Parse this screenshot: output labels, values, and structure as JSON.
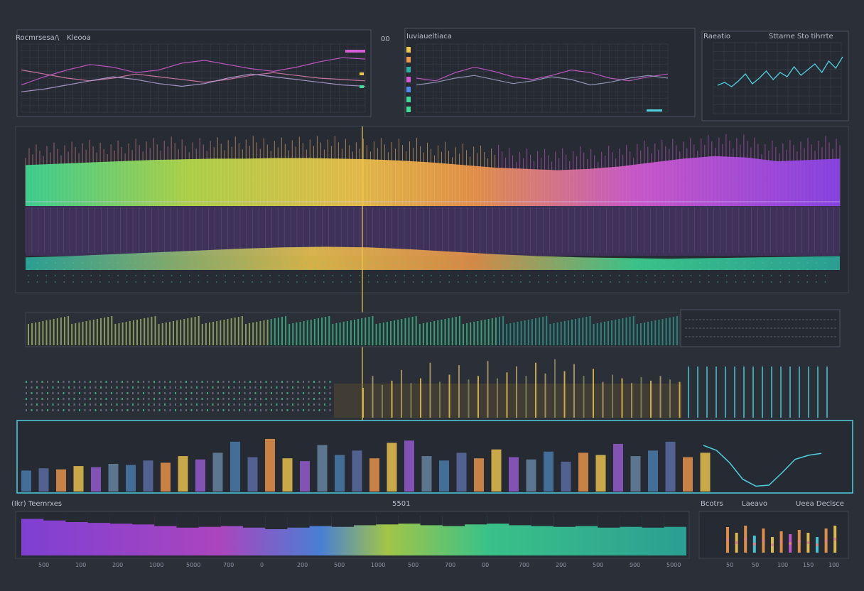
{
  "colors": {
    "background": "#2b2f38",
    "panel": "#252932",
    "frame": "#5c6573",
    "accent_cyan": "#4fd1e0",
    "yellow": "#f2c94c",
    "orange": "#f2994a",
    "magenta": "#d65cd6",
    "purple": "#8e44ef",
    "green": "#3ddc97",
    "teal": "#2bb3a3"
  },
  "top_panels": [
    {
      "title_left": "Rocmrsesa/\\",
      "title_right": "Kleooa",
      "corner_label": "00"
    },
    {
      "title_left": "Iuviaueltiaca",
      "title_right": "",
      "corner_label": ""
    },
    {
      "title_left": "Raeatio",
      "title_right": "Sttarne   Sto tihrrte",
      "corner_label": ""
    }
  ],
  "bottom_labels": {
    "left": "(Ikr) Teemrxes",
    "center": "5501",
    "right_a": "Bcotrs",
    "right_b": "Laeavo",
    "right_c": "Ueea Declsce"
  },
  "chart_data": [
    {
      "type": "line",
      "name": "top-left-multi-line",
      "series": [
        {
          "name": "",
          "values": [
            0.4,
            0.52,
            0.62,
            0.7,
            0.66,
            0.58,
            0.62,
            0.72,
            0.76,
            0.7,
            0.64,
            0.6,
            0.66,
            0.74,
            0.8,
            0.78
          ]
        },
        {
          "name": "",
          "values": [
            0.62,
            0.56,
            0.5,
            0.46,
            0.5,
            0.56,
            0.52,
            0.48,
            0.44,
            0.48,
            0.54,
            0.58,
            0.54,
            0.5,
            0.48,
            0.46
          ]
        },
        {
          "name": "",
          "values": [
            0.3,
            0.34,
            0.4,
            0.46,
            0.52,
            0.48,
            0.42,
            0.38,
            0.42,
            0.5,
            0.56,
            0.52,
            0.48,
            0.44,
            0.4,
            0.38
          ]
        }
      ]
    },
    {
      "type": "line",
      "name": "top-middle-multi-line",
      "series": [
        {
          "name": "",
          "values": [
            0.5,
            0.46,
            0.58,
            0.66,
            0.6,
            0.52,
            0.48,
            0.54,
            0.62,
            0.58,
            0.5,
            0.46,
            0.52,
            0.56
          ]
        },
        {
          "name": "",
          "values": [
            0.4,
            0.44,
            0.5,
            0.54,
            0.48,
            0.42,
            0.46,
            0.52,
            0.48,
            0.4,
            0.44,
            0.5,
            0.54,
            0.5
          ]
        }
      ]
    },
    {
      "type": "line",
      "name": "top-right-line",
      "values": [
        0.4,
        0.44,
        0.38,
        0.46,
        0.56,
        0.42,
        0.5,
        0.6,
        0.48,
        0.58,
        0.52,
        0.66,
        0.54,
        0.62,
        0.7,
        0.58,
        0.74,
        0.64,
        0.8
      ]
    },
    {
      "type": "area",
      "name": "main-spectrum-band",
      "values": [
        0.64,
        0.66,
        0.68,
        0.7,
        0.72,
        0.73,
        0.74,
        0.74,
        0.75,
        0.75,
        0.74,
        0.73,
        0.71,
        0.68,
        0.64,
        0.6,
        0.58,
        0.56,
        0.58,
        0.62,
        0.68,
        0.74,
        0.78,
        0.76,
        0.7,
        0.72,
        0.74
      ]
    },
    {
      "type": "area",
      "name": "secondary-spectrum-band",
      "values": [
        0.4,
        0.44,
        0.5,
        0.56,
        0.62,
        0.68,
        0.72,
        0.74,
        0.72,
        0.66,
        0.58,
        0.5,
        0.44,
        0.4,
        0.38,
        0.36,
        0.38,
        0.4,
        0.42,
        0.44
      ]
    },
    {
      "type": "bar",
      "name": "middle-bar-strip",
      "values": [
        0.5,
        0.7,
        0.55,
        0.62,
        0.8,
        0.58,
        0.66,
        0.92,
        0.6,
        0.72,
        0.88,
        0.64,
        0.7,
        0.95,
        0.66,
        0.76,
        0.86,
        0.7,
        0.92,
        0.74,
        0.98,
        0.78,
        0.9,
        0.7,
        0.82,
        0.6,
        0.72,
        0.66,
        0.58,
        0.68,
        0.62,
        0.7,
        0.64,
        0.6
      ]
    },
    {
      "type": "bar",
      "name": "lower-bar-panel",
      "values": [
        0.38,
        0.42,
        0.4,
        0.46,
        0.44,
        0.5,
        0.48,
        0.56,
        0.52,
        0.64,
        0.58,
        0.7,
        0.9,
        0.62,
        0.95,
        0.6,
        0.55,
        0.84,
        0.66,
        0.74,
        0.6,
        0.88,
        0.92,
        0.64,
        0.56,
        0.7,
        0.6,
        0.76,
        0.62,
        0.58,
        0.72,
        0.54,
        0.7,
        0.66,
        0.86,
        0.64,
        0.74,
        0.9,
        0.62,
        0.7
      ]
    },
    {
      "type": "line",
      "name": "lower-right-curve",
      "values": [
        0.9,
        0.8,
        0.55,
        0.22,
        0.08,
        0.1,
        0.35,
        0.62,
        0.7,
        0.74
      ]
    },
    {
      "type": "bar",
      "name": "bottom-spectrum",
      "values": [
        0.92,
        0.88,
        0.84,
        0.82,
        0.8,
        0.78,
        0.74,
        0.7,
        0.72,
        0.74,
        0.7,
        0.66,
        0.7,
        0.74,
        0.72,
        0.76,
        0.78,
        0.8,
        0.76,
        0.74,
        0.78,
        0.8,
        0.76,
        0.74,
        0.72,
        0.74,
        0.7,
        0.72,
        0.7,
        0.72
      ],
      "tick_labels": [
        "500",
        "100",
        "200",
        "1000",
        "5000",
        "700",
        "0",
        "200",
        "500",
        "1000",
        "500",
        "700",
        "00",
        "700",
        "200",
        "500",
        "900",
        "5000"
      ]
    },
    {
      "type": "bar",
      "name": "bottom-right-mini-bars",
      "values": [
        0.9,
        0.7,
        0.95,
        0.6,
        0.85,
        0.55,
        0.75,
        0.65,
        0.8,
        0.7,
        0.55,
        0.85,
        0.95
      ],
      "tick_labels": [
        "50",
        "50",
        "100",
        "150",
        "100"
      ]
    }
  ]
}
